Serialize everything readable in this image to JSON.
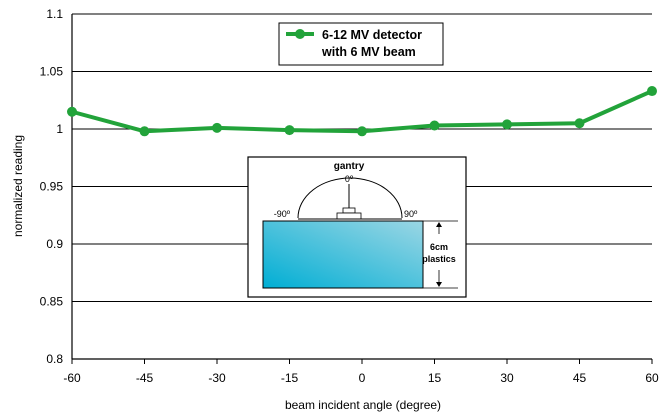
{
  "chart_data": {
    "type": "line",
    "xlabel": "beam incident angle (degree)",
    "ylabel": "normalized reading",
    "xlim": [
      -60,
      60
    ],
    "ylim": [
      0.8,
      1.1
    ],
    "x_ticks": [
      "-60",
      "-45",
      "-30",
      "-15",
      "0",
      "15",
      "30",
      "45",
      "60"
    ],
    "y_ticks": [
      "0.8",
      "0.85",
      "0.9",
      "0.95",
      "1",
      "1.05",
      "1.1"
    ],
    "grid": "horizontal",
    "legend_position": "top-center",
    "series": [
      {
        "name_line1": "6-12 MV detector",
        "name_line2": "with 6 MV beam",
        "color": "#22a33a",
        "x": [
          -60,
          -45,
          -30,
          -15,
          0,
          15,
          30,
          45,
          60
        ],
        "y": [
          1.015,
          0.998,
          1.001,
          0.999,
          0.998,
          1.003,
          1.004,
          1.005,
          1.033
        ]
      }
    ]
  },
  "inset": {
    "gantry_label": "gantry",
    "angle_top": "0º",
    "angle_left": "-90º",
    "angle_right": "90º",
    "thickness_label": "6cm",
    "material_label": "plastics",
    "phantom_colors": [
      "#00aed4",
      "#9bd6e4"
    ]
  }
}
